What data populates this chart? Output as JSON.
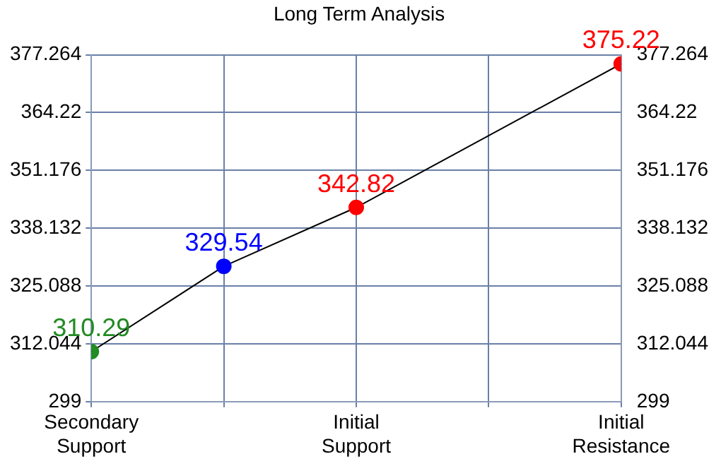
{
  "chart_data": {
    "type": "line",
    "title": "Long Term Analysis",
    "categories": [
      "Secondary Support",
      null,
      "Initial Support",
      null,
      "Initial Resistance"
    ],
    "series": [
      {
        "type": "line",
        "color": "#000000",
        "colors": [
          "#228b22",
          "#0000ff",
          "#ff0000",
          null,
          "#ff0000"
        ],
        "values": [
          310.29,
          329.54,
          342.82,
          null,
          375.22
        ],
        "marker": "circle"
      }
    ],
    "ylim": [
      299,
      377.264
    ],
    "yticks": [
      299,
      312.044,
      325.088,
      338.132,
      351.176,
      364.22,
      377.264
    ],
    "y2lim": [
      299,
      377.264
    ],
    "y2ticks": [
      299,
      312.044,
      325.088,
      338.132,
      351.176,
      364.22,
      377.264
    ],
    "grid": true,
    "legend": false,
    "data_labels": true
  }
}
